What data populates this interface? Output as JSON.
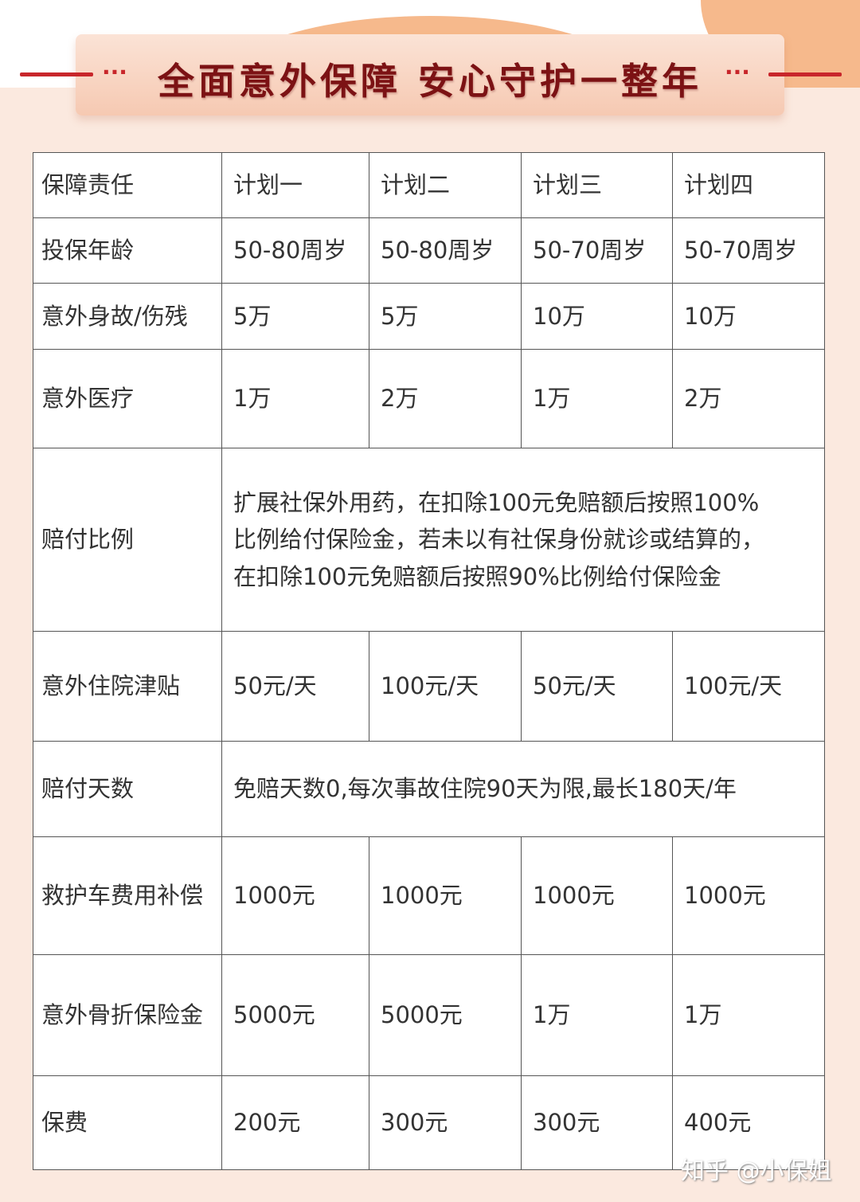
{
  "header": {
    "title": "全面意外保障  安心守护一整年",
    "dots": "···"
  },
  "table": {
    "columns": [
      "保障责任",
      "计划一",
      "计划二",
      "计划三",
      "计划四"
    ],
    "rows": [
      {
        "label": "投保年龄",
        "cells": [
          "50-80周岁",
          "50-80周岁",
          "50-70周岁",
          "50-70周岁"
        ]
      },
      {
        "label": "意外身故/伤残",
        "cells": [
          "5万",
          "5万",
          "10万",
          "10万"
        ]
      },
      {
        "label": "意外医疗",
        "cells": [
          "1万",
          "2万",
          "1万",
          "2万"
        ]
      },
      {
        "label": "赔付比例",
        "merged": "扩展社保外用药，在扣除100元免赔额后按照100%比例给付保险金，若未以有社保身份就诊或结算的，在扣除100元免赔额后按照90%比例给付保险金"
      },
      {
        "label": "意外住院津贴",
        "cells": [
          "50元/天",
          "100元/天",
          "50元/天",
          "100元/天"
        ]
      },
      {
        "label": "赔付天数",
        "merged": "免赔天数0,每次事故住院90天为限,最长180天/年"
      },
      {
        "label": "救护车费用补偿",
        "cells": [
          "1000元",
          "1000元",
          "1000元",
          "1000元"
        ]
      },
      {
        "label": "意外骨折保险金",
        "cells": [
          "5000元",
          "5000元",
          "1万",
          "1万"
        ]
      },
      {
        "label": "保费",
        "cells": [
          "200元",
          "300元",
          "300元",
          "400元"
        ]
      }
    ]
  },
  "watermark": "知乎 @小保姐",
  "colors": {
    "accent": "#c8262b",
    "title": "#7c1214",
    "background": "#fbe9df"
  }
}
